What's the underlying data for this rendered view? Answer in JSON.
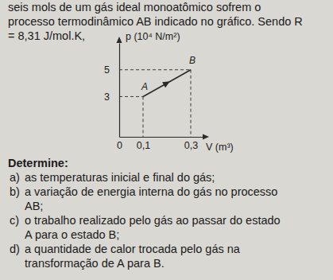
{
  "text_lines": [
    "seis mols de um gás ideal monoatômico sofrem o",
    "processo termodinâmico AB indicado no gráfico. Sendo R",
    "= 8,31 J/mol.K,"
  ],
  "chart_data": {
    "type": "line",
    "y_label": "p (10⁴ N/m²)",
    "x_label": "V (m³)",
    "x": [
      0.1,
      0.3
    ],
    "values": [
      3,
      5
    ],
    "point_labels": [
      "A",
      "B"
    ],
    "xlim": [
      0,
      0.35
    ],
    "ylim": [
      0,
      7
    ],
    "xticks": [
      0,
      {
        "value": 0.1,
        "label": "0,1"
      },
      {
        "value": 0.3,
        "label": "0,3"
      }
    ],
    "yticks": [
      3,
      5
    ],
    "color": "#2a2a2a",
    "line_style": "solid",
    "marker": "arrow"
  },
  "questions": {
    "heading": "Determine:",
    "items": [
      {
        "letter": "a)",
        "lines": [
          "as temperaturas inicial e final do gás;"
        ]
      },
      {
        "letter": "b)",
        "lines": [
          "a variação de energia interna do gás no processo",
          "AB;"
        ]
      },
      {
        "letter": "c)",
        "lines": [
          "o trabalho realizado pelo gás ao passar do estado",
          "A para o estado B;"
        ]
      },
      {
        "letter": "d)",
        "lines": [
          "a quantidade de calor trocada pelo gás na",
          "transformação de A para B."
        ]
      }
    ]
  }
}
